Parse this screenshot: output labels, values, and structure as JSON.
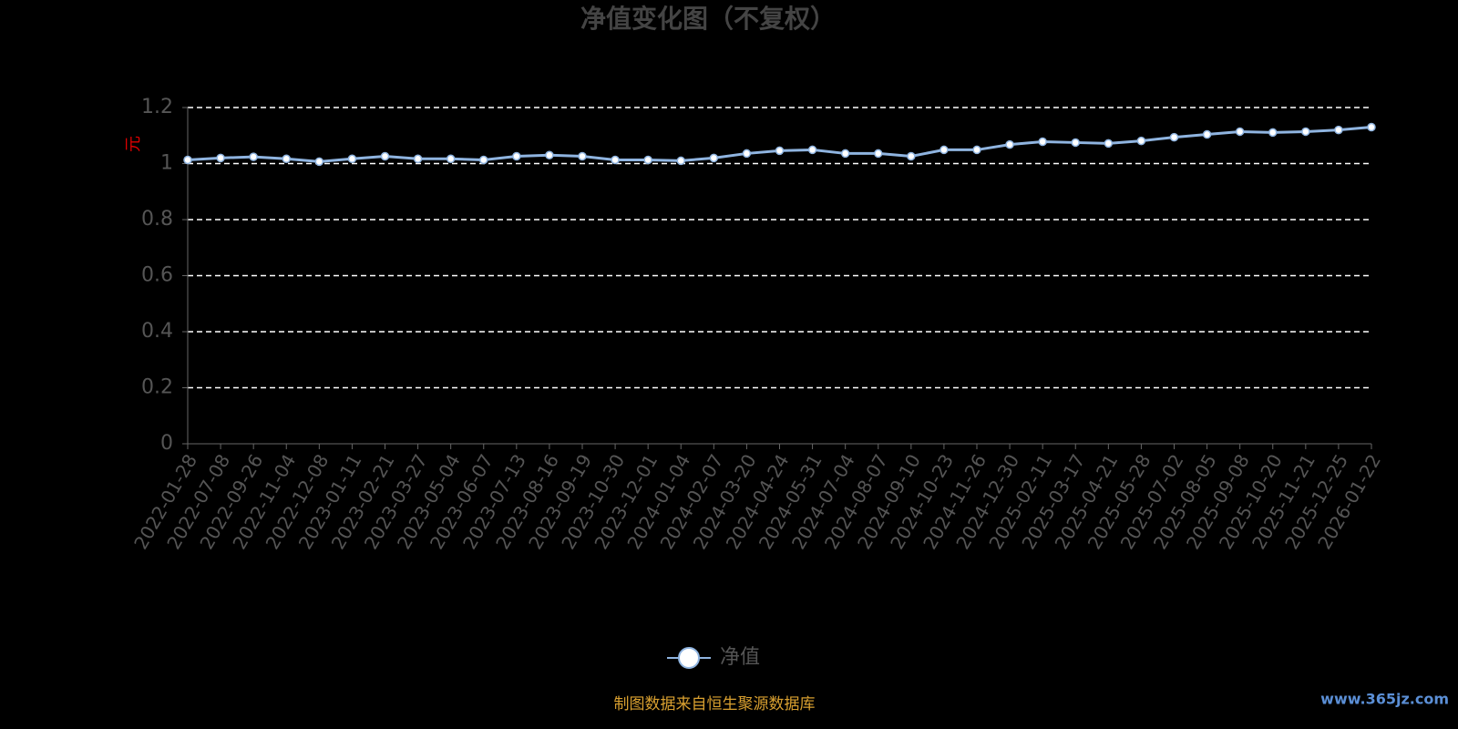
{
  "chart_data": {
    "type": "line",
    "title": "净值变化图（不复权）",
    "y_label": "元",
    "categories": [
      "2022-01-28",
      "2022-07-08",
      "2022-09-26",
      "2022-11-04",
      "2022-12-08",
      "2023-01-11",
      "2023-02-21",
      "2023-03-27",
      "2023-05-04",
      "2023-06-07",
      "2023-07-13",
      "2023-08-16",
      "2023-09-19",
      "2023-10-30",
      "2023-12-01",
      "2024-01-04",
      "2024-02-07",
      "2024-03-20",
      "2024-04-24",
      "2024-05-31",
      "2024-07-04",
      "2024-08-07",
      "2024-09-10",
      "2024-10-23",
      "2024-11-26",
      "2024-12-30",
      "2025-02-11",
      "2025-03-17",
      "2025-04-21",
      "2025-05-28",
      "2025-07-02",
      "2025-08-05",
      "2025-09-08",
      "2025-10-20",
      "2025-11-21",
      "2025-12-25",
      "2026-01-22"
    ],
    "series": [
      {
        "name": "净值",
        "color": "#8fb4e0",
        "values": [
          1.013,
          1.02,
          1.024,
          1.017,
          1.007,
          1.017,
          1.026,
          1.017,
          1.017,
          1.013,
          1.026,
          1.03,
          1.026,
          1.013,
          1.013,
          1.01,
          1.02,
          1.036,
          1.046,
          1.049,
          1.036,
          1.036,
          1.026,
          1.049,
          1.049,
          1.068,
          1.078,
          1.075,
          1.072,
          1.081,
          1.094,
          1.104,
          1.114,
          1.111,
          1.114,
          1.12,
          1.13
        ]
      }
    ],
    "ylim": [
      0,
      1.2
    ],
    "yticks": [
      0,
      0.2,
      0.4,
      0.6,
      0.8,
      1,
      1.2
    ],
    "grid": true,
    "legend": "bottom",
    "source": "制图数据来自恒生聚源数据库",
    "watermark": "www.365jz.com"
  }
}
